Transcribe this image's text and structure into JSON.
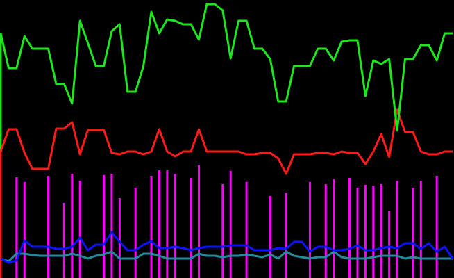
{
  "chart_data": {
    "type": "line",
    "ylim": [
      0,
      400
    ],
    "background": "#000000",
    "series": [
      {
        "type": "bar",
        "color": "#ff00ff",
        "values": [
          null,
          null,
          145,
          138,
          null,
          null,
          147,
          null,
          108,
          150,
          140,
          null,
          null,
          148,
          150,
          115,
          null,
          130,
          null,
          147,
          155,
          155,
          150,
          null,
          144,
          162,
          null,
          null,
          135,
          154,
          null,
          138,
          null,
          null,
          118,
          null,
          122,
          null,
          null,
          138,
          null,
          135,
          142,
          null,
          144,
          130,
          134,
          132,
          135,
          96,
          140,
          null,
          130,
          140,
          null,
          147,
          null,
          null
        ]
      },
      {
        "type": "line",
        "color": "#1e8c9c",
        "values": [
          28,
          24,
          35,
          35,
          33,
          32,
          32,
          32,
          32,
          35,
          32,
          28,
          32,
          34,
          38,
          28,
          28,
          28,
          35,
          35,
          32,
          28,
          28,
          28,
          28,
          35,
          32,
          32,
          30,
          32,
          32,
          34,
          32,
          30,
          34,
          28,
          38,
          32,
          30,
          28,
          30,
          30,
          38,
          30,
          28,
          28,
          28,
          30,
          32,
          32,
          32,
          28,
          30,
          28,
          28,
          28,
          28,
          28
        ]
      },
      {
        "type": "line",
        "color": "#0a14ff",
        "values": [
          28,
          22,
          25,
          54,
          45,
          45,
          45,
          42,
          42,
          45,
          58,
          40,
          48,
          48,
          66,
          52,
          40,
          40,
          48,
          53,
          43,
          43,
          45,
          43,
          40,
          43,
          45,
          45,
          45,
          47,
          47,
          47,
          40,
          40,
          40,
          43,
          42,
          52,
          52,
          38,
          45,
          45,
          40,
          40,
          42,
          47,
          40,
          40,
          43,
          45,
          43,
          50,
          50,
          42,
          50,
          38,
          45,
          28
        ]
      },
      {
        "type": "line",
        "color": "#ff1a1a",
        "values": [
          182,
          214,
          214,
          180,
          157,
          157,
          157,
          215,
          215,
          224,
          178,
          213,
          213,
          213,
          180,
          178,
          182,
          182,
          178,
          182,
          214,
          182,
          175,
          182,
          182,
          214,
          182,
          182,
          182,
          182,
          182,
          178,
          178,
          180,
          180,
          172,
          150,
          178,
          178,
          178,
          180,
          180,
          178,
          182,
          180,
          180,
          164,
          182,
          207,
          174,
          242,
          210,
          210,
          182,
          178,
          178,
          182,
          182
        ]
      },
      {
        "type": "line",
        "color": "#1ee61e",
        "values": [
          352,
          302,
          302,
          348,
          330,
          330,
          330,
          279,
          279,
          251,
          370,
          338,
          305,
          305,
          355,
          365,
          268,
          268,
          305,
          383,
          352,
          372,
          370,
          365,
          365,
          343,
          394,
          394,
          385,
          316,
          370,
          370,
          330,
          330,
          315,
          254,
          254,
          305,
          305,
          305,
          330,
          330,
          313,
          340,
          342,
          342,
          262,
          313,
          308,
          315,
          212,
          315,
          315,
          335,
          335,
          313,
          352,
          352
        ]
      }
    ]
  }
}
